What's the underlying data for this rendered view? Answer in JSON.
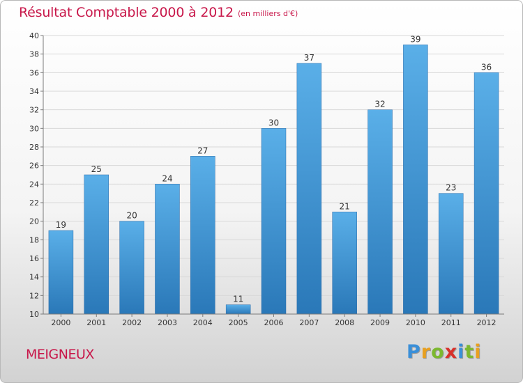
{
  "header": {
    "title": "Résultat Comptable 2000 à 2012",
    "subtitle": "(en milliers d'€)"
  },
  "footer": {
    "commune": "MEIGNEUX",
    "logo_letters": [
      "P",
      "r",
      "o",
      "x",
      "i",
      "t",
      "i"
    ],
    "logo_colors": [
      "#3a8fd8",
      "#e8a020",
      "#7cb82f",
      "#d8302a",
      "#3a8fd8",
      "#7cb82f",
      "#e8a020"
    ]
  },
  "colors": {
    "bar_top": "#5aafe8",
    "bar_bottom": "#2a78b8",
    "grid": "#d8d8d8",
    "axis": "#7a7a7a",
    "accent": "#c8174a"
  },
  "chart_data": {
    "type": "bar",
    "title": "Résultat Comptable 2000 à 2012",
    "subtitle": "(en milliers d'€)",
    "xlabel": "",
    "ylabel": "",
    "categories": [
      "2000",
      "2001",
      "2002",
      "2003",
      "2004",
      "2005",
      "2006",
      "2007",
      "2008",
      "2009",
      "2010",
      "2011",
      "2012"
    ],
    "values": [
      19,
      25,
      20,
      24,
      27,
      11,
      30,
      37,
      21,
      32,
      39,
      23,
      36
    ],
    "ylim": [
      10,
      40
    ],
    "yticks": [
      10,
      12,
      14,
      16,
      18,
      20,
      22,
      24,
      26,
      28,
      30,
      32,
      34,
      36,
      38,
      40
    ],
    "grid": true,
    "legend": "none"
  }
}
